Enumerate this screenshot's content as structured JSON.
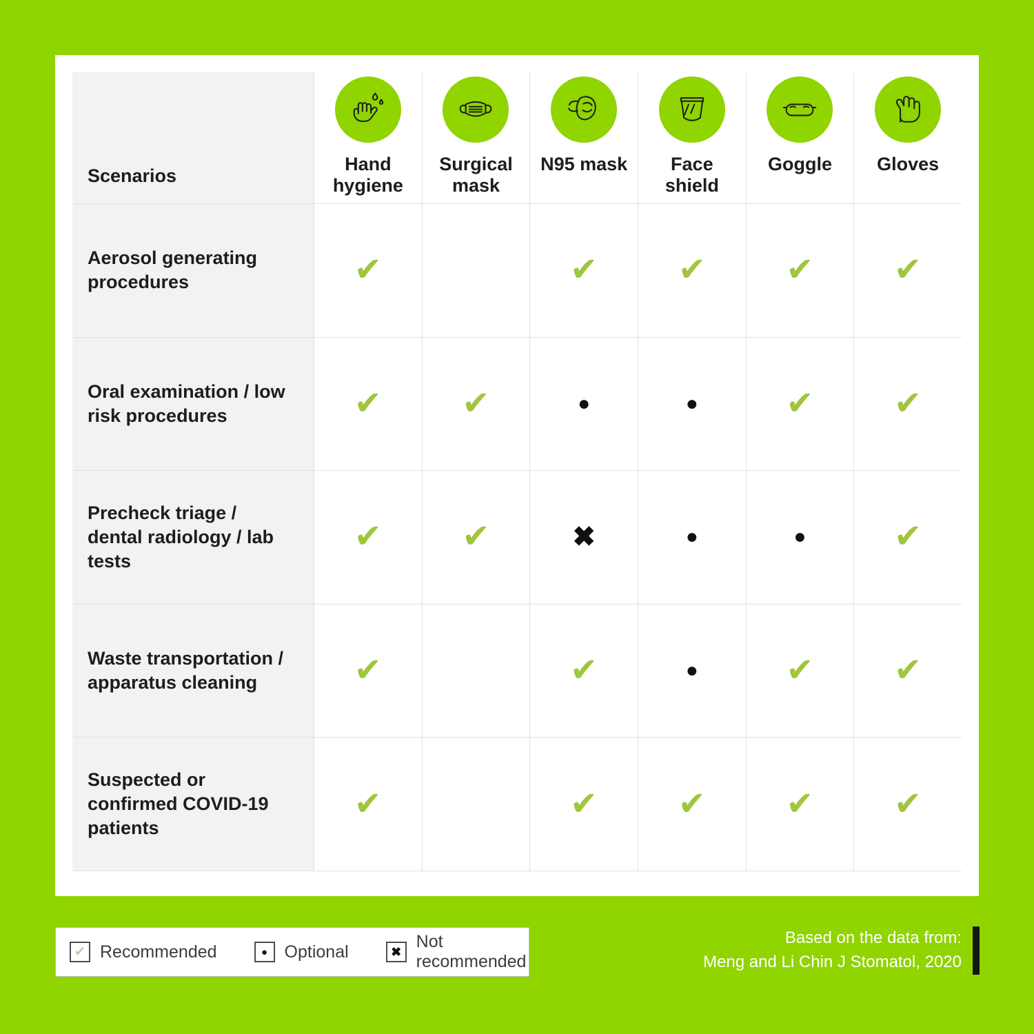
{
  "colors": {
    "background_green": "#90d400",
    "icon_circle_green": "#90d400",
    "check_green": "#9fc63d",
    "label_cell_gray": "#f2f2f2",
    "grid_line": "#e3e3e3",
    "text_dark": "#1d1d1b",
    "source_bar_black": "#161616"
  },
  "table": {
    "corner_label": "Scenarios",
    "columns": [
      {
        "id": "hand-hygiene",
        "label": "Hand hygiene",
        "icon": "icon-hand-hygiene",
        "icon_name": "hand-hygiene-icon"
      },
      {
        "id": "surgical-mask",
        "label": "Surgical mask",
        "icon": "icon-surgical-mask",
        "icon_name": "surgical-mask-icon"
      },
      {
        "id": "n95-mask",
        "label": "N95 mask",
        "icon": "icon-n95-mask",
        "icon_name": "n95-mask-icon"
      },
      {
        "id": "face-shield",
        "label": "Face shield",
        "icon": "icon-face-shield",
        "icon_name": "face-shield-icon"
      },
      {
        "id": "goggle",
        "label": "Goggle",
        "icon": "icon-goggle",
        "icon_name": "goggle-icon"
      },
      {
        "id": "gloves",
        "label": "Gloves",
        "icon": "icon-gloves",
        "icon_name": "gloves-icon"
      }
    ],
    "rows": [
      {
        "label": "Aerosol generating procedures",
        "values": [
          "recommended",
          "none",
          "recommended",
          "recommended",
          "recommended",
          "recommended"
        ]
      },
      {
        "label": "Oral examination / low risk procedures",
        "values": [
          "recommended",
          "recommended",
          "optional",
          "optional",
          "recommended",
          "recommended"
        ]
      },
      {
        "label": "Precheck triage / dental radiology / lab tests",
        "values": [
          "recommended",
          "recommended",
          "not_recommended",
          "optional",
          "optional",
          "recommended"
        ]
      },
      {
        "label": "Waste transportation / apparatus cleaning",
        "values": [
          "recommended",
          "none",
          "recommended",
          "optional",
          "recommended",
          "recommended"
        ]
      },
      {
        "label": "Suspected or confirmed COVID-19 patients",
        "values": [
          "recommended",
          "none",
          "recommended",
          "recommended",
          "recommended",
          "recommended"
        ]
      }
    ]
  },
  "symbols": {
    "recommended": "✔",
    "optional": "●",
    "not_recommended": "✖"
  },
  "legend": [
    {
      "key": "recommended",
      "label": "Recommended"
    },
    {
      "key": "optional",
      "label": "Optional"
    },
    {
      "key": "not_recommended",
      "label": "Not recommended"
    }
  ],
  "source": {
    "line1": "Based on the data from:",
    "line2": "Meng and Li Chin J Stomatol, 2020"
  },
  "chart_data": {
    "type": "table",
    "title": "PPE recommendations by dental scenario",
    "columns": [
      "Scenarios",
      "Hand hygiene",
      "Surgical mask",
      "N95 mask",
      "Face shield",
      "Goggle",
      "Gloves"
    ],
    "rows": [
      [
        "Aerosol generating procedures",
        "recommended",
        "",
        "recommended",
        "recommended",
        "recommended",
        "recommended"
      ],
      [
        "Oral examination / low risk procedures",
        "recommended",
        "recommended",
        "optional",
        "optional",
        "recommended",
        "recommended"
      ],
      [
        "Precheck triage / dental radiology / lab tests",
        "recommended",
        "recommended",
        "not recommended",
        "optional",
        "optional",
        "recommended"
      ],
      [
        "Waste transportation / apparatus cleaning",
        "recommended",
        "",
        "recommended",
        "optional",
        "recommended",
        "recommended"
      ],
      [
        "Suspected or confirmed COVID-19 patients",
        "recommended",
        "",
        "recommended",
        "recommended",
        "recommended",
        "recommended"
      ]
    ],
    "legend": {
      "recommended": "check mark",
      "optional": "dot",
      "not recommended": "cross"
    },
    "source": "Based on the data from: Meng and Li Chin J Stomatol, 2020"
  }
}
